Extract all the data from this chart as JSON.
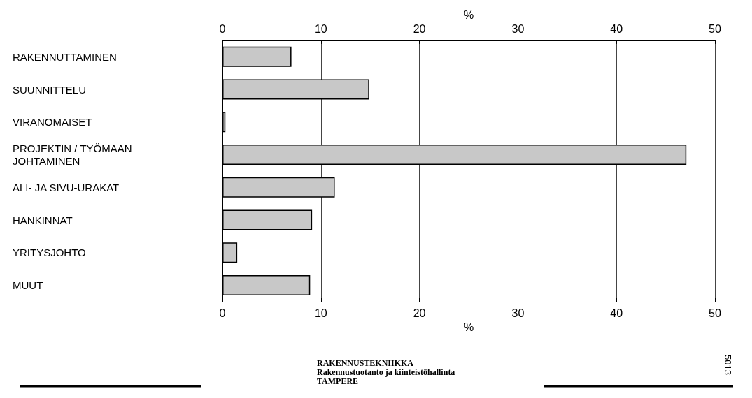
{
  "chart_data": {
    "type": "bar",
    "orientation": "horizontal",
    "categories": [
      "RAKENNUTTAMINEN",
      "SUUNNITTELU",
      "VIRANOMAISET",
      "PROJEKTIN / TYÖMAAN\nJOHTAMINEN",
      "ALI- JA SIVU-URAKAT",
      "HANKINNAT",
      "YRITYSJOHTO",
      "MUUT"
    ],
    "values": [
      7.0,
      14.9,
      0.3,
      47.1,
      11.4,
      9.1,
      1.5,
      8.9
    ],
    "color": "#c8c8c8",
    "xlim": [
      0,
      50
    ],
    "xticks": [
      0,
      10,
      20,
      30,
      40,
      50
    ],
    "xlabel": "%",
    "x2lim": [
      0,
      50
    ],
    "x2ticks": [
      0,
      10,
      20,
      30,
      40,
      50
    ],
    "x2label": "%",
    "grid": "x",
    "annotations": [
      "RAKENNUSTEKNIIKKA\nRakennustuotanto ja kiinteistöhallinta\nTAMPERE",
      "5013"
    ]
  }
}
